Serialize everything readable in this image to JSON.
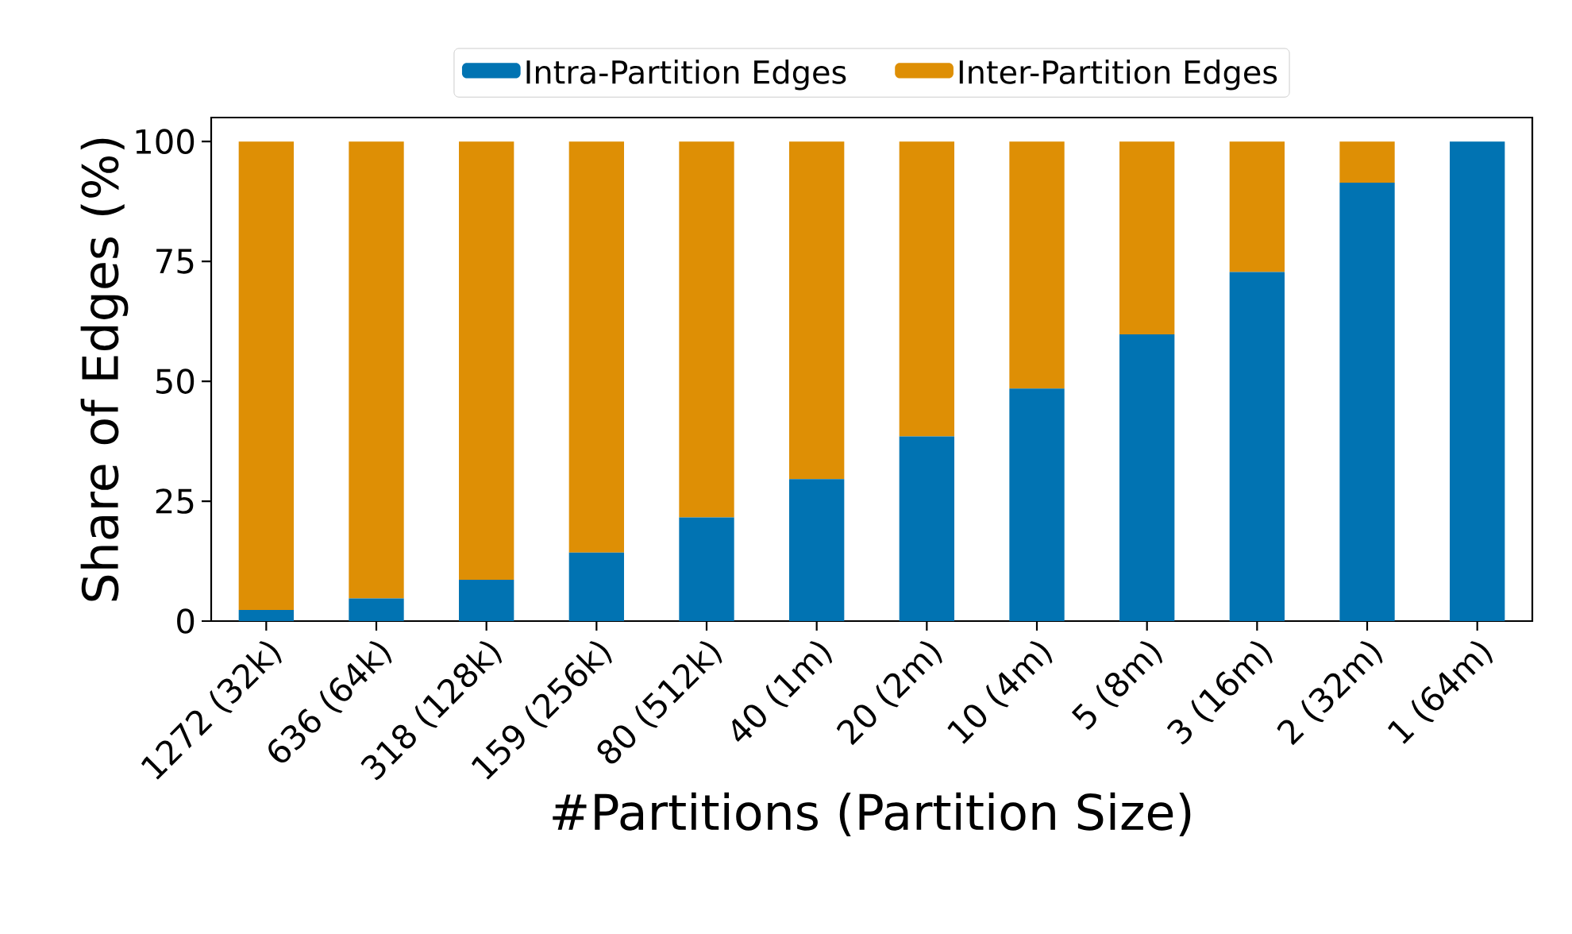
{
  "chart_data": {
    "type": "bar",
    "stacked": true,
    "xlabel": "#Partitions (Partition Size)",
    "ylabel": "Share of Edges (%)",
    "categories": [
      "1272 (32k)",
      "636 (64k)",
      "318 (128k)",
      "159 (256k)",
      "80 (512k)",
      "40 (1m)",
      "20 (2m)",
      "10 (4m)",
      "5 (8m)",
      "3 (16m)",
      "2 (32m)",
      "1 (64m)"
    ],
    "series": [
      {
        "name": "Intra-Partition Edges",
        "color": "#0173b2",
        "values": [
          2.3,
          4.7,
          8.6,
          14.3,
          21.6,
          29.6,
          38.5,
          48.5,
          59.8,
          72.8,
          91.4,
          100
        ]
      },
      {
        "name": "Inter-Partition Edges",
        "color": "#de8f05",
        "values": [
          97.7,
          95.3,
          91.4,
          85.7,
          78.4,
          70.4,
          61.5,
          51.5,
          40.2,
          27.2,
          8.6,
          0
        ]
      }
    ],
    "ylim": [
      0,
      105
    ],
    "yticks": [
      0,
      25,
      50,
      75,
      100
    ],
    "legend": "top"
  }
}
